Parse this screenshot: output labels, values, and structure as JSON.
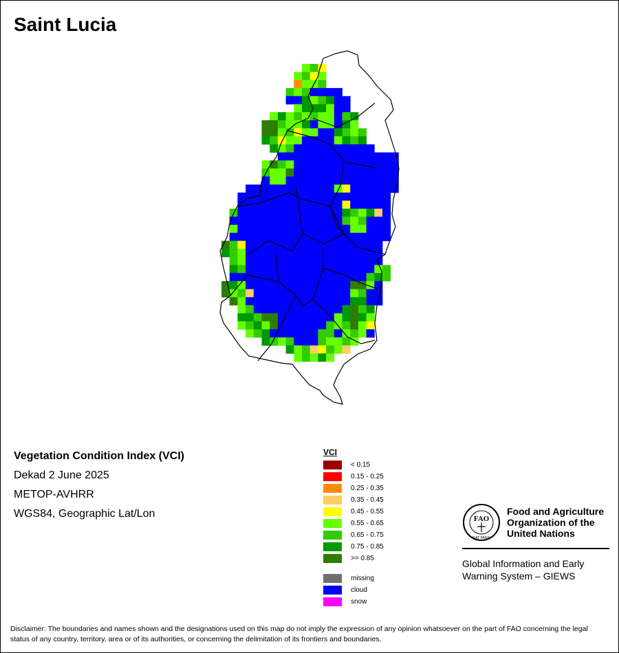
{
  "map_title": "Saint Lucia",
  "info": {
    "heading": "Vegetation Condition Index (VCI)",
    "period": "Dekad 2 June 2025",
    "sensor": "METOP-AVHRR",
    "projection": "WGS84, Geographic Lat/Lon"
  },
  "legend": {
    "title": "VCI",
    "classes": [
      {
        "label": "< 0.15",
        "color": "#990000"
      },
      {
        "label": "0.15 - 0.25",
        "color": "#ff0000"
      },
      {
        "label": "0.25 - 0.35",
        "color": "#ff8c00"
      },
      {
        "label": "0.35 - 0.45",
        "color": "#ffcc66"
      },
      {
        "label": "0.45 - 0.55",
        "color": "#ffff00"
      },
      {
        "label": "0.55 - 0.65",
        "color": "#66ff00"
      },
      {
        "label": "0.65 - 0.75",
        "color": "#33cc00"
      },
      {
        "label": "0.75 - 0.85",
        "color": "#009900"
      },
      {
        "label": ">= 0.85",
        "color": "#2e7d00"
      }
    ],
    "extra": [
      {
        "label": "missing",
        "color": "#707070"
      },
      {
        "label": "cloud",
        "color": "#0000ff"
      },
      {
        "label": "snow",
        "color": "#ff00ff"
      }
    ]
  },
  "fao": {
    "logo_letters": "FAO",
    "logo_motto": "FIAT PANIS",
    "name_lines": [
      "Food and Agriculture",
      "Organization of the",
      "United Nations"
    ],
    "system_lines": [
      "Global Information and Early",
      "Warning System – GIEWS"
    ]
  },
  "disclaimer": "Disclaimer: The boundaries and names shown and the designations used on this map do not imply the expression of any opinion whatsoever on the part of FAO concerning the legal status of any country, territory, area or of its authorities, or concerning the delimitation of its frontiers and boundaries.",
  "map_grid": {
    "codes": {
      ".": "none",
      "C": "cloud",
      "g": "0.55 - 0.65",
      "m": "0.65 - 0.75",
      "d": "0.75 - 0.85",
      "D": ">= 0.85",
      "y": "0.45 - 0.55",
      "o": "0.25 - 0.35",
      "l": "0.35 - 0.45"
    },
    "rows": [
      "..........gmy..................",
      ".........gmyg..................",
      ".........oggm..................",
      "........mgmCCCC................",
      "........CCdgmdCC...............",
      ".........gdddgCC...............",
      "......gdgmgmggCmd..............",
      ".....DDmggdCggCdg..............",
      ".....DDgmyggCCdmgm.............",
      ".....dmyggCCCCgdmd.............",
      "......dgmCCCCCCCCCC............",
      ".......CCCCCCCCCCCCCCC.........",
      ".....gDmgCCCCCCCCCCCCC.........",
      ".....mggDCCCCCCCCCCCCC.........",
      ".....CggCCCCCCCCCCCCCC.........",
      "...CCCCCCCCCCCgyCCCCCC.........",
      "..CCCCCCCCCCCCCCCCCCC..........",
      "..CCCCCCCCCCCCCyCCCCC..........",
      ".mCCCCCCCCCCCCCdmgdlC..........",
      ".CCCCCCCCCCCCCCmgmCCC..........",
      ".gCCCCCCCCCCCCCCggCCC..........",
      ".CCCCCCCCCCCCCCCCCCCC..........",
      "DmyCCCCCCCCCCCCCCCCC...........",
      "dmgCCCCCCCCCCCCCCCCC...........",
      ".mgCCCCCCCCCCCCCCCCC...........",
      ".dmCCCCCCCCCCCCCCCCgm..........",
      ".CCCCCCCCCCCCCCCCCmdm..........",
      "DdgCCCCCCCCCCCCCDDgC...........",
      "DgmlCCCCCCCCCCCCgmCC...........",
      ".DgCCCCCCCCCCCCCddCC...........",
      "..gmCCCCCCCCCCCdDmd............",
      "..ddmDDCCCCCCCgdDdg............",
      "..gmdgDCCCCCCmgmDgy............",
      "...gmdCCCCCCmmCgmgC............",
      ".....dmgmCCCmggmg..............",
      "........dgmlymgl...............",
      ".........gmgdg................."
    ]
  }
}
